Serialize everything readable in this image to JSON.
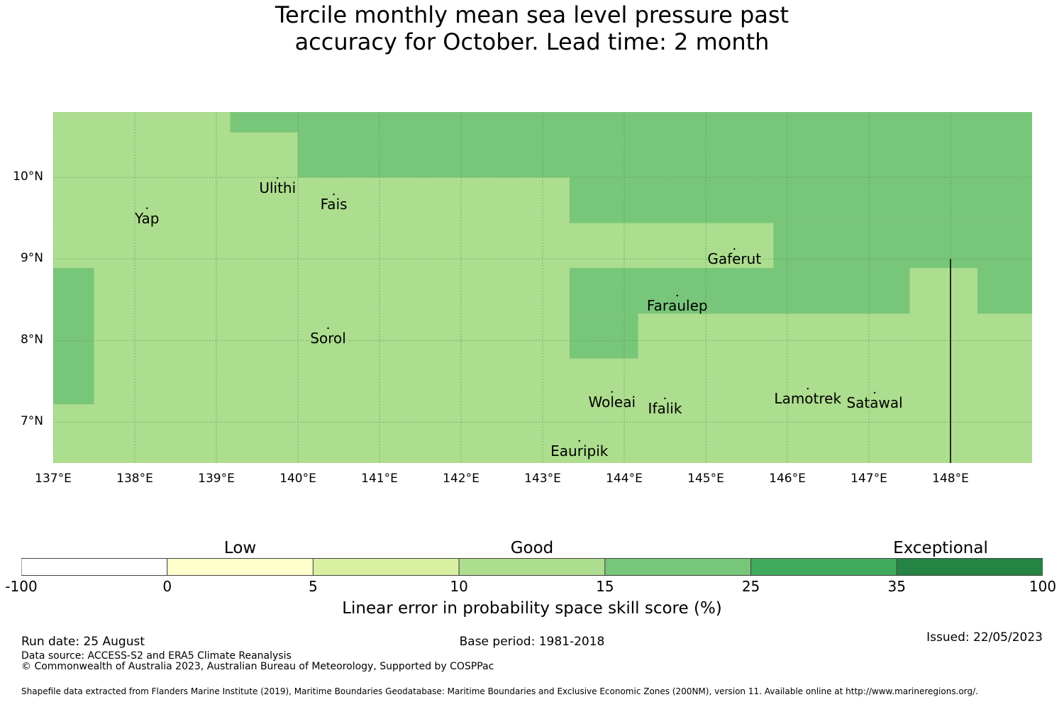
{
  "title_line1": "Tercile monthly mean sea level pressure past",
  "title_line2": "accuracy for October. Lead time: 2 month",
  "map": {
    "lon_range": [
      137,
      149
    ],
    "lat_range": [
      6.5,
      10.8
    ],
    "lon_ticks": [
      {
        "value": 137,
        "label": "137°E"
      },
      {
        "value": 138,
        "label": "138°E"
      },
      {
        "value": 139,
        "label": "139°E"
      },
      {
        "value": 140,
        "label": "140°E"
      },
      {
        "value": 141,
        "label": "141°E"
      },
      {
        "value": 142,
        "label": "142°E"
      },
      {
        "value": 143,
        "label": "143°E"
      },
      {
        "value": 144,
        "label": "144°E"
      },
      {
        "value": 145,
        "label": "145°E"
      },
      {
        "value": 146,
        "label": "146°E"
      },
      {
        "value": 147,
        "label": "147°E"
      },
      {
        "value": 148,
        "label": "148°E"
      }
    ],
    "lat_ticks": [
      {
        "value": 10,
        "label": "10°N"
      },
      {
        "value": 9,
        "label": "9°N"
      },
      {
        "value": 8,
        "label": "8°N"
      },
      {
        "value": 7,
        "label": "7°N"
      }
    ],
    "background_class": "10-15",
    "cells_15_25": [
      {
        "lon": [
          139.17,
          140.0
        ],
        "lat": [
          10.55,
          10.8
        ]
      },
      {
        "lon": [
          140.0,
          149.0
        ],
        "lat": [
          10.0,
          10.8
        ]
      },
      {
        "lon": [
          143.33,
          149.0
        ],
        "lat": [
          9.44,
          10.0
        ]
      },
      {
        "lon": [
          145.83,
          149.0
        ],
        "lat": [
          8.89,
          9.44
        ]
      },
      {
        "lon": [
          143.33,
          147.5
        ],
        "lat": [
          8.33,
          8.89
        ]
      },
      {
        "lon": [
          148.33,
          149.0
        ],
        "lat": [
          8.33,
          8.89
        ]
      },
      {
        "lon": [
          143.33,
          144.17
        ],
        "lat": [
          7.78,
          8.33
        ]
      },
      {
        "lon": [
          137.0,
          137.5
        ],
        "lat": [
          7.22,
          8.89
        ]
      }
    ],
    "boundary_line": {
      "lon": 148.0,
      "lat": [
        6.5,
        9.0
      ]
    },
    "places": [
      {
        "name": "Yap",
        "lon": 138.15,
        "lat": 9.5
      },
      {
        "name": "Ulithi",
        "lon": 139.75,
        "lat": 9.87
      },
      {
        "name": "Fais",
        "lon": 140.44,
        "lat": 9.67
      },
      {
        "name": "Gaferut",
        "lon": 145.35,
        "lat": 9.0
      },
      {
        "name": "Faraulep",
        "lon": 144.65,
        "lat": 8.43
      },
      {
        "name": "Sorol",
        "lon": 140.37,
        "lat": 8.03
      },
      {
        "name": "Woleai",
        "lon": 143.85,
        "lat": 7.25
      },
      {
        "name": "Ifalik",
        "lon": 144.5,
        "lat": 7.17
      },
      {
        "name": "Lamotrek",
        "lon": 146.25,
        "lat": 7.29
      },
      {
        "name": "Satawal",
        "lon": 147.07,
        "lat": 7.24
      },
      {
        "name": "Eauripik",
        "lon": 143.45,
        "lat": 6.65
      }
    ]
  },
  "colorbar": {
    "classes": [
      {
        "range": "-100-0",
        "color": "#ffffff"
      },
      {
        "range": "0-5",
        "color": "#ffffcc"
      },
      {
        "range": "5-10",
        "color": "#d9f0a3"
      },
      {
        "range": "10-15",
        "color": "#addd8e"
      },
      {
        "range": "15-25",
        "color": "#78c679"
      },
      {
        "range": "25-35",
        "color": "#41ab5d"
      },
      {
        "range": "35-100",
        "color": "#238443"
      }
    ],
    "ticks": [
      "-100",
      "0",
      "5",
      "10",
      "15",
      "25",
      "35",
      "100"
    ],
    "categories": [
      "Low",
      "Good",
      "Exceptional"
    ],
    "caption": "Linear error in probability space skill score (%)"
  },
  "footer": {
    "run_date": "Run date: 25 August",
    "base_period": "Base period: 1981-2018",
    "issued": "Issued: 22/05/2023",
    "data_source": "Data source: ACCESS-S2 and ERA5 Climate Reanalysis",
    "copyright": "© Commonwealth of Australia 2023, Australian Bureau of Meteorology, Supported by COSPPac",
    "shapefile": "Shapefile data extracted from Flanders Marine Institute (2019), Maritime Boundaries Geodatabase: Maritime Boundaries and Exclusive Economic Zones (200NM), version 11. Available online at http://www.marineregions.org/."
  }
}
